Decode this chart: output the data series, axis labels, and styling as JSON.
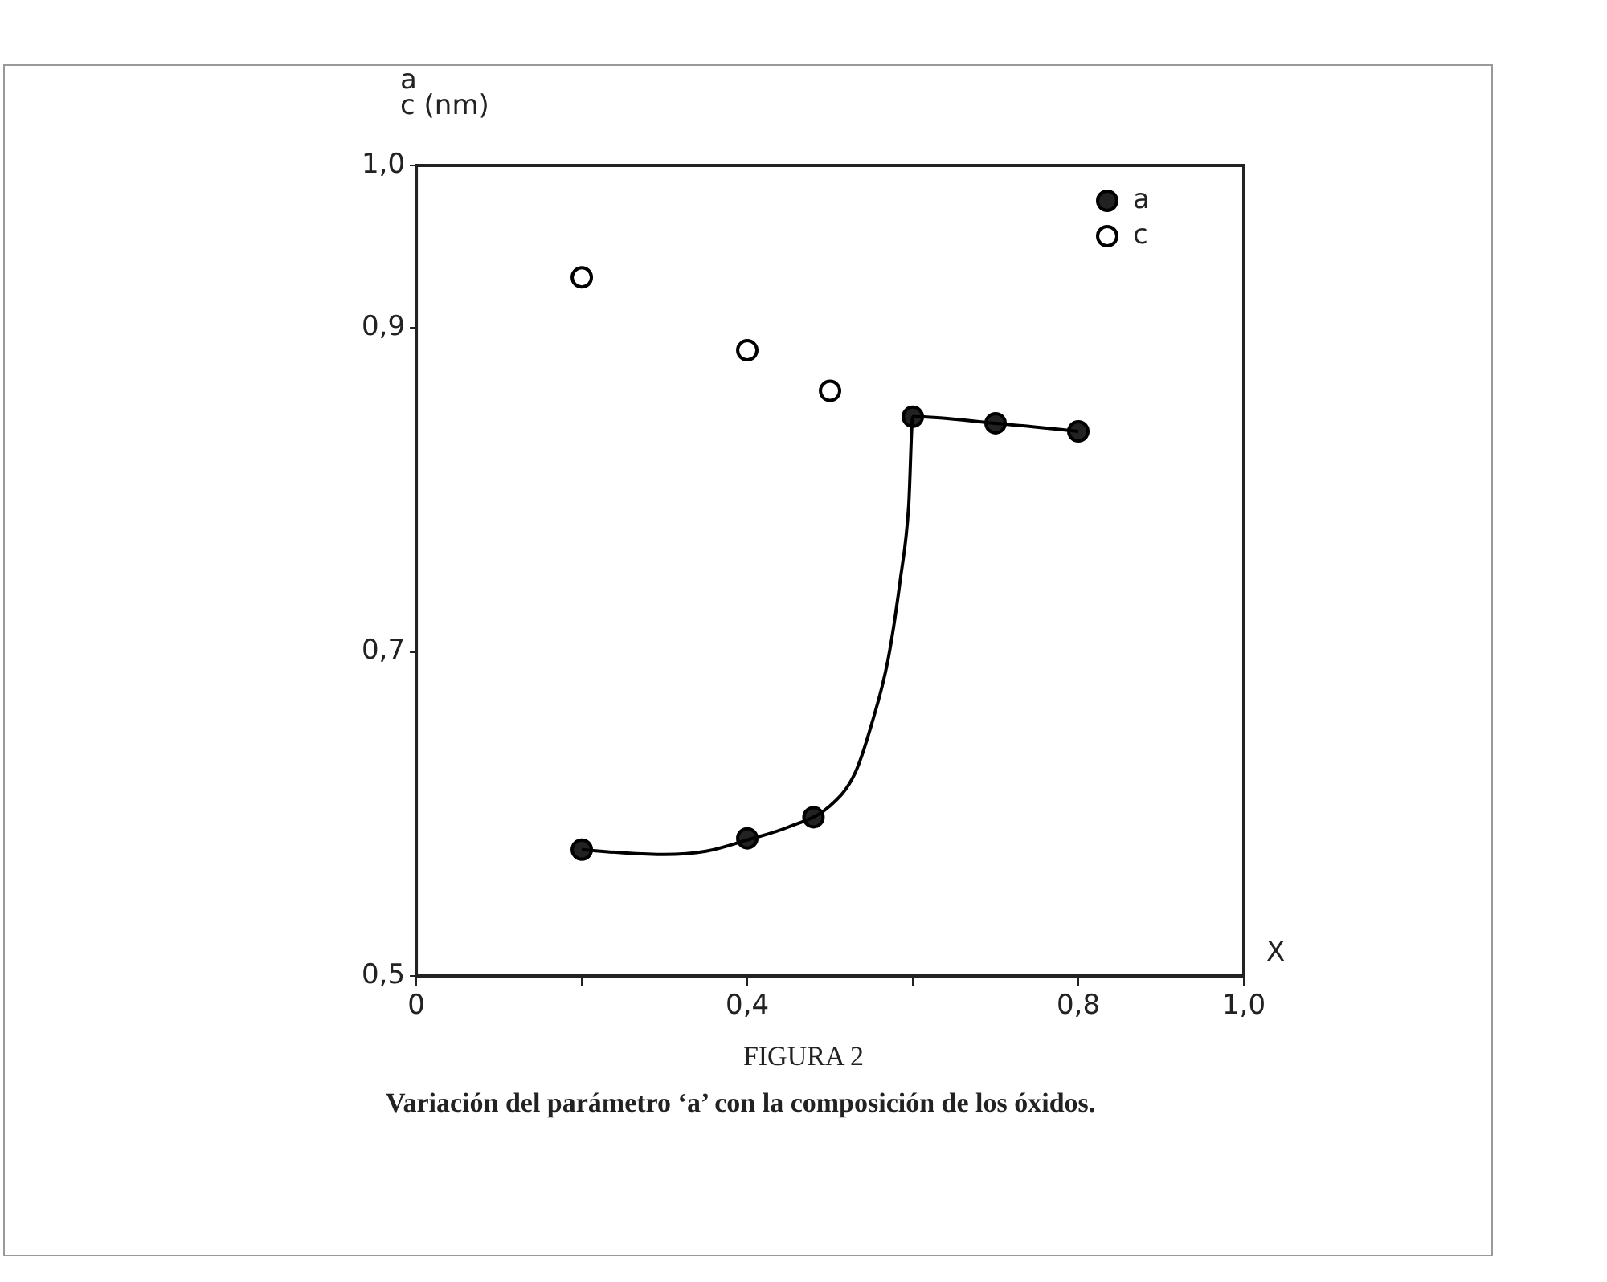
{
  "chart_data": {
    "type": "scatter",
    "title": "FIGURA 2",
    "subtitle": "Variación del parámetro ‘a’ con la composición de los óxidos.",
    "xlabel": "X",
    "ylabel": "a\nc (nm)",
    "xlim": [
      0,
      1.0
    ],
    "ylim": [
      0.5,
      1.0
    ],
    "xticks": [
      0,
      {
        "value": 0.2,
        "label": null
      },
      {
        "value": 0.4,
        "label": "0,4"
      },
      {
        "value": 0.6,
        "label": null
      },
      {
        "value": 0.8,
        "label": "0,8"
      },
      {
        "value": 1.0,
        "label": "1,0"
      }
    ],
    "yticks": [
      {
        "value": 0.5,
        "label": "0,5"
      },
      {
        "value": 0.7,
        "label": "0,7"
      },
      {
        "value": 0.9,
        "label": "0,9"
      },
      {
        "value": 1.0,
        "label": "1,0"
      }
    ],
    "grid": false,
    "legend": "top right",
    "marker": "circle",
    "series": [
      {
        "type": "line",
        "color": "#000000",
        "marker": "none",
        "x": [
          0.2,
          0.25,
          0.3,
          0.35,
          0.4,
          0.45,
          0.5,
          0.53,
          0.55,
          0.57,
          0.585,
          0.595,
          0.6,
          0.7,
          0.8
        ],
        "values": [
          0.578,
          0.576,
          0.575,
          0.577,
          0.584,
          0.592,
          0.605,
          0.625,
          0.655,
          0.695,
          0.745,
          0.79,
          0.845,
          0.841,
          0.836
        ]
      },
      {
        "name": "a",
        "color": "#222222",
        "x": [
          0.2,
          0.4,
          0.48,
          0.6,
          0.7,
          0.8
        ],
        "values": [
          0.578,
          0.585,
          0.598,
          0.845,
          0.841,
          0.836
        ]
      },
      {
        "name": "c",
        "color": "#ffffff",
        "x": [
          0.2,
          0.4,
          0.5
        ],
        "values": [
          0.931,
          0.886,
          0.861
        ]
      }
    ]
  }
}
